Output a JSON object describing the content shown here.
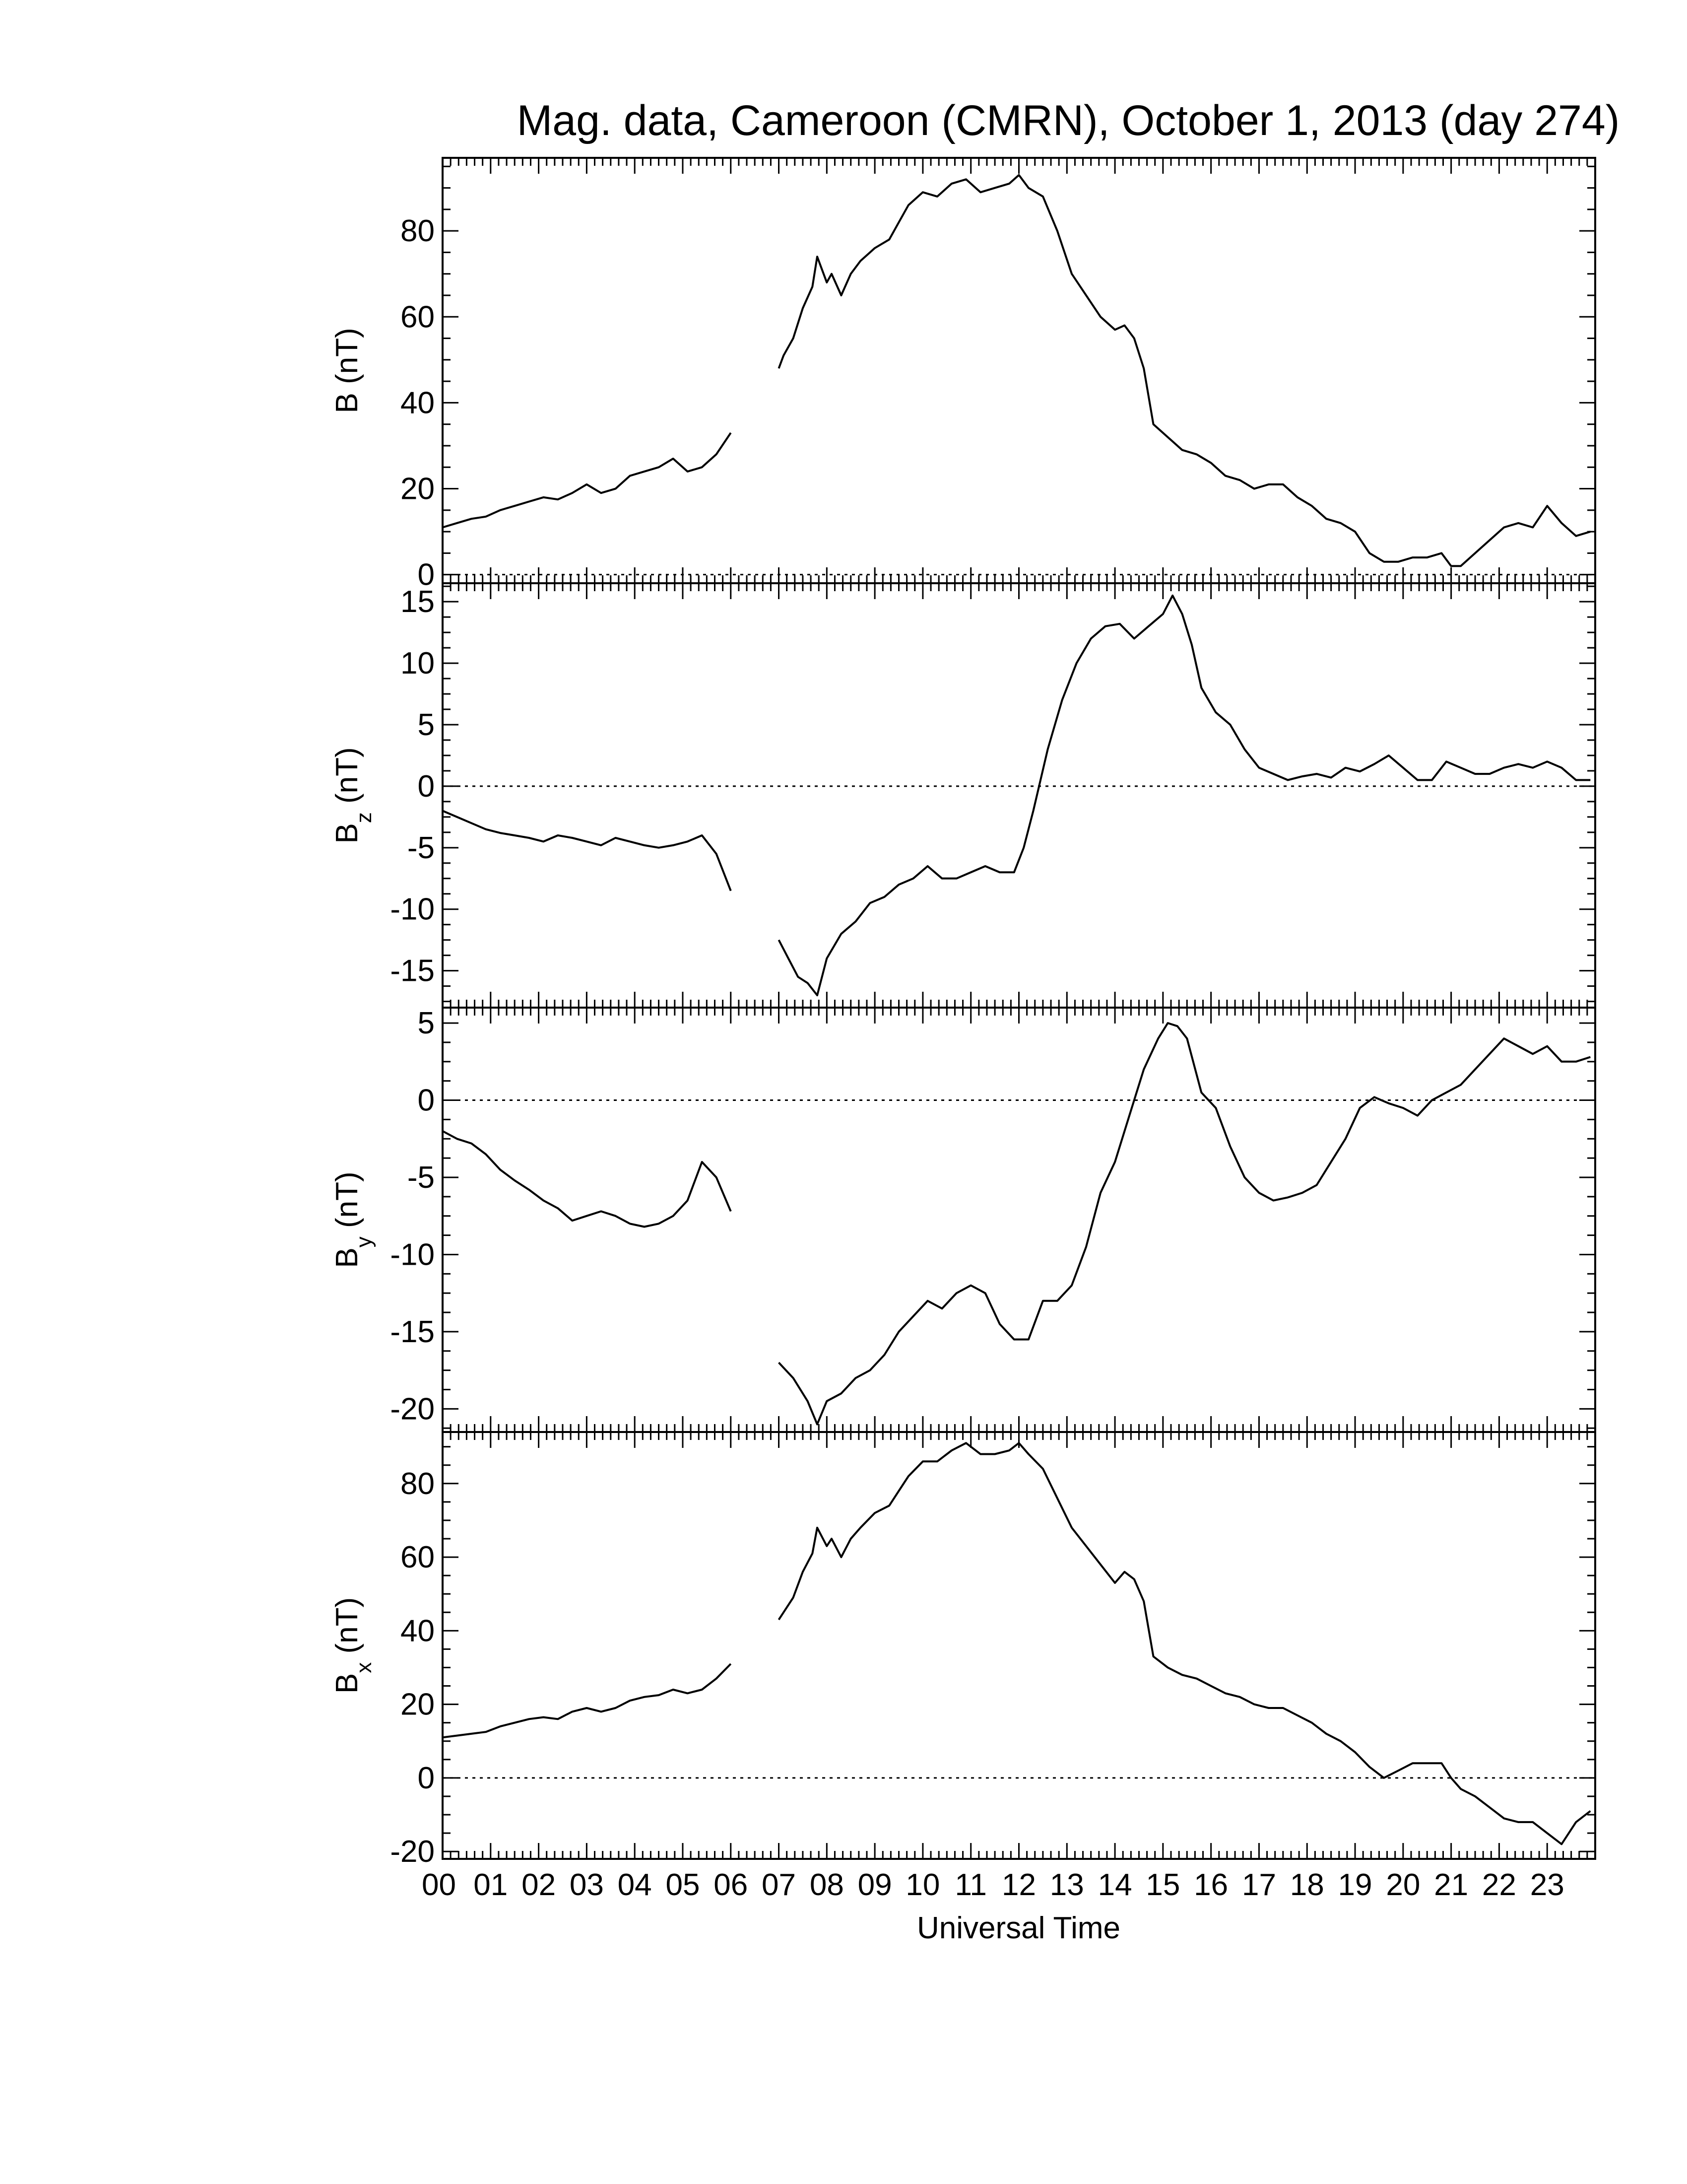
{
  "figure": {
    "title": "Mag. data, Cameroon (CMRN), October 1, 2013 (day 274)",
    "xlabel": "Universal Time",
    "x_tick_labels": [
      "00",
      "01",
      "02",
      "03",
      "04",
      "05",
      "06",
      "07",
      "08",
      "09",
      "10",
      "11",
      "12",
      "13",
      "14",
      "15",
      "16",
      "17",
      "18",
      "19",
      "20",
      "21",
      "22",
      "23"
    ]
  },
  "chart_data": [
    {
      "type": "line",
      "panel": "B",
      "ylabel_main": "B (nT)",
      "ylabel_sub": "",
      "ylabel_unit": "",
      "xlim": [
        0,
        24
      ],
      "ylim": [
        -2,
        97
      ],
      "yticks": [
        0,
        20,
        40,
        60,
        80
      ],
      "zero_line": true,
      "x": [
        0,
        0.3,
        0.6,
        0.9,
        1.2,
        1.5,
        1.8,
        2.1,
        2.4,
        2.7,
        3.0,
        3.3,
        3.6,
        3.9,
        4.2,
        4.5,
        4.8,
        5.1,
        5.4,
        5.7,
        6.0,
        null,
        7.0,
        7.1,
        7.3,
        7.5,
        7.7,
        7.8,
        8.0,
        8.1,
        8.3,
        8.5,
        8.7,
        9.0,
        9.3,
        9.5,
        9.7,
        10.0,
        10.3,
        10.6,
        10.9,
        11.2,
        11.5,
        11.8,
        12.0,
        12.2,
        12.5,
        12.8,
        13.1,
        13.4,
        13.7,
        14.0,
        14.2,
        14.4,
        14.6,
        14.8,
        15.1,
        15.4,
        15.7,
        16.0,
        16.3,
        16.6,
        16.9,
        17.2,
        17.5,
        17.8,
        18.1,
        18.4,
        18.7,
        19.0,
        19.3,
        19.6,
        19.9,
        20.2,
        20.5,
        20.8,
        21.0,
        21.2,
        21.5,
        21.8,
        22.1,
        22.4,
        22.7,
        23.0,
        23.3,
        23.6,
        23.9
      ],
      "values": [
        11,
        12,
        13,
        13.5,
        15,
        16,
        17,
        18,
        17.5,
        19,
        21,
        19,
        20,
        23,
        24,
        25,
        27,
        24,
        25,
        28,
        33,
        null,
        48,
        51,
        55,
        62,
        67,
        74,
        68,
        70,
        65,
        70,
        73,
        76,
        78,
        82,
        86,
        89,
        88,
        91,
        92,
        89,
        90,
        91,
        93,
        90,
        88,
        80,
        70,
        65,
        60,
        57,
        58,
        55,
        48,
        35,
        32,
        29,
        28,
        26,
        23,
        22,
        20,
        21,
        21,
        18,
        16,
        13,
        12,
        10,
        5,
        3,
        3,
        4,
        4,
        5,
        2,
        2,
        5,
        8,
        11,
        12,
        11,
        16,
        12,
        9,
        10
      ]
    },
    {
      "type": "line",
      "panel": "Bz",
      "ylabel_main": "B",
      "ylabel_sub": "z",
      "ylabel_unit": "(nT)",
      "xlim": [
        0,
        24
      ],
      "ylim": [
        -18,
        16.5
      ],
      "yticks": [
        -15,
        -10,
        -5,
        0,
        5,
        10,
        15
      ],
      "zero_line": true,
      "x": [
        0,
        0.3,
        0.6,
        0.9,
        1.2,
        1.5,
        1.8,
        2.1,
        2.4,
        2.7,
        3.0,
        3.3,
        3.6,
        3.9,
        4.2,
        4.5,
        4.8,
        5.1,
        5.4,
        5.7,
        6.0,
        null,
        7.0,
        7.2,
        7.4,
        7.6,
        7.8,
        8.0,
        8.3,
        8.6,
        8.9,
        9.2,
        9.5,
        9.8,
        10.1,
        10.4,
        10.7,
        11.0,
        11.3,
        11.6,
        11.9,
        12.1,
        12.3,
        12.6,
        12.9,
        13.2,
        13.5,
        13.8,
        14.1,
        14.4,
        14.7,
        15.0,
        15.2,
        15.4,
        15.6,
        15.8,
        16.1,
        16.4,
        16.7,
        17.0,
        17.3,
        17.6,
        17.9,
        18.2,
        18.5,
        18.8,
        19.1,
        19.4,
        19.7,
        20.0,
        20.3,
        20.6,
        20.9,
        21.2,
        21.5,
        21.8,
        22.1,
        22.4,
        22.7,
        23.0,
        23.3,
        23.6,
        23.9
      ],
      "values": [
        -2,
        -2.5,
        -3,
        -3.5,
        -3.8,
        -4,
        -4.2,
        -4.5,
        -4,
        -4.2,
        -4.5,
        -4.8,
        -4.2,
        -4.5,
        -4.8,
        -5,
        -4.8,
        -4.5,
        -4,
        -5.5,
        -8.5,
        null,
        -12.5,
        -14,
        -15.5,
        -16,
        -17,
        -14,
        -12,
        -11,
        -9.5,
        -9,
        -8,
        -7.5,
        -6.5,
        -7.5,
        -7.5,
        -7,
        -6.5,
        -7,
        -7,
        -5,
        -2,
        3,
        7,
        10,
        12,
        13,
        13.2,
        12,
        13,
        14,
        15.5,
        14,
        11.5,
        8,
        6,
        5,
        3,
        1.5,
        1,
        0.5,
        0.8,
        1,
        0.7,
        1.5,
        1.2,
        1.8,
        2.5,
        1.5,
        0.5,
        0.5,
        2,
        1.5,
        1,
        1,
        1.5,
        1.8,
        1.5,
        2,
        1.5,
        0.5,
        0.5
      ]
    },
    {
      "type": "line",
      "panel": "By",
      "ylabel_main": "B",
      "ylabel_sub": "y",
      "ylabel_unit": "(nT)",
      "xlim": [
        0,
        24
      ],
      "ylim": [
        -21.5,
        6
      ],
      "yticks": [
        -20,
        -15,
        -10,
        -5,
        0,
        5
      ],
      "zero_line": true,
      "x": [
        0,
        0.3,
        0.6,
        0.9,
        1.2,
        1.5,
        1.8,
        2.1,
        2.4,
        2.7,
        3.0,
        3.3,
        3.6,
        3.9,
        4.2,
        4.5,
        4.8,
        5.1,
        5.4,
        5.7,
        6.0,
        null,
        7.0,
        7.3,
        7.6,
        7.8,
        8.0,
        8.3,
        8.6,
        8.9,
        9.2,
        9.5,
        9.8,
        10.1,
        10.4,
        10.7,
        11.0,
        11.3,
        11.6,
        11.9,
        12.2,
        12.5,
        12.8,
        13.1,
        13.4,
        13.7,
        14.0,
        14.3,
        14.6,
        14.9,
        15.1,
        15.3,
        15.5,
        15.8,
        16.1,
        16.4,
        16.7,
        17.0,
        17.3,
        17.6,
        17.9,
        18.2,
        18.5,
        18.8,
        19.1,
        19.4,
        19.7,
        20.0,
        20.3,
        20.6,
        20.9,
        21.2,
        21.5,
        21.8,
        22.1,
        22.4,
        22.7,
        23.0,
        23.3,
        23.6,
        23.9
      ],
      "values": [
        -2,
        -2.5,
        -2.8,
        -3.5,
        -4.5,
        -5.2,
        -5.8,
        -6.5,
        -7,
        -7.8,
        -7.5,
        -7.2,
        -7.5,
        -8,
        -8.2,
        -8,
        -7.5,
        -6.5,
        -4,
        -5,
        -7.2,
        null,
        -17,
        -18,
        -19.5,
        -21,
        -19.5,
        -19,
        -18,
        -17.5,
        -16.5,
        -15,
        -14,
        -13,
        -13.5,
        -12.5,
        -12,
        -12.5,
        -14.5,
        -15.5,
        -15.5,
        -13,
        -13,
        -12,
        -9.5,
        -6,
        -4,
        -1,
        2,
        4,
        5,
        4.8,
        4,
        0.5,
        -0.5,
        -3,
        -5,
        -6,
        -6.5,
        -6.3,
        -6,
        -5.5,
        -4,
        -2.5,
        -0.5,
        0.2,
        -0.2,
        -0.5,
        -1,
        0,
        0.5,
        1,
        2,
        3,
        4,
        3.5,
        3,
        3.5,
        2.5,
        2.5,
        2.8
      ]
    },
    {
      "type": "line",
      "panel": "Bx",
      "ylabel_main": "B",
      "ylabel_sub": "x",
      "ylabel_unit": "(nT)",
      "xlim": [
        0,
        24
      ],
      "ylim": [
        -22,
        94
      ],
      "yticks": [
        -20,
        0,
        20,
        40,
        60,
        80
      ],
      "zero_line": true,
      "x": [
        0,
        0.3,
        0.6,
        0.9,
        1.2,
        1.5,
        1.8,
        2.1,
        2.4,
        2.7,
        3.0,
        3.3,
        3.6,
        3.9,
        4.2,
        4.5,
        4.8,
        5.1,
        5.4,
        5.7,
        6.0,
        null,
        7.0,
        7.1,
        7.3,
        7.5,
        7.7,
        7.8,
        8.0,
        8.1,
        8.3,
        8.5,
        8.7,
        9.0,
        9.3,
        9.5,
        9.7,
        10.0,
        10.3,
        10.6,
        10.9,
        11.2,
        11.5,
        11.8,
        12.0,
        12.2,
        12.5,
        12.8,
        13.1,
        13.4,
        13.7,
        14.0,
        14.2,
        14.4,
        14.6,
        14.8,
        15.1,
        15.4,
        15.7,
        16.0,
        16.3,
        16.6,
        16.9,
        17.2,
        17.5,
        17.8,
        18.1,
        18.4,
        18.7,
        19.0,
        19.3,
        19.6,
        19.9,
        20.2,
        20.5,
        20.8,
        21.0,
        21.2,
        21.5,
        21.8,
        22.1,
        22.4,
        22.7,
        23.0,
        23.3,
        23.6,
        23.9
      ],
      "values": [
        11,
        11.5,
        12,
        12.5,
        14,
        15,
        16,
        16.5,
        16,
        18,
        19,
        18,
        19,
        21,
        22,
        22.5,
        24,
        23,
        24,
        27,
        31,
        null,
        43,
        45,
        49,
        56,
        61,
        68,
        63,
        65,
        60,
        65,
        68,
        72,
        74,
        78,
        82,
        86,
        86,
        89,
        91,
        88,
        88,
        89,
        91,
        88,
        84,
        76,
        68,
        63,
        58,
        53,
        56,
        54,
        48,
        33,
        30,
        28,
        27,
        25,
        23,
        22,
        20,
        19,
        19,
        17,
        15,
        12,
        10,
        7,
        3,
        0,
        2,
        4,
        4,
        4,
        0,
        -3,
        -5,
        -8,
        -11,
        -12,
        -12,
        -15,
        -18,
        -12,
        -9
      ]
    }
  ]
}
